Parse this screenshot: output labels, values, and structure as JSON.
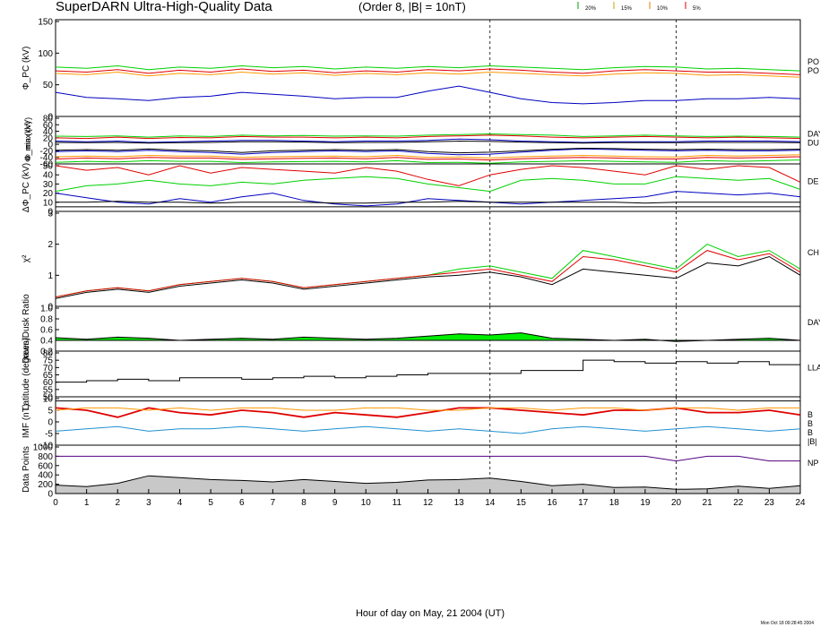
{
  "header": {
    "title": "SuperDARN Ultra-High-Quality Data",
    "subtitle": "(Order 8, |B| = 10nT)",
    "legend": [
      {
        "label": "20%",
        "color": "#00a000"
      },
      {
        "label": "15%",
        "color": "#d0a000"
      },
      {
        "label": "10%",
        "color": "#e08000"
      },
      {
        "label": "5%",
        "color": "#e00000"
      }
    ]
  },
  "footer": {
    "xlabel": "Hour of day on May, 21 2004 (UT)",
    "timestamp": "Mon Oct 18 09:28:45 2004"
  },
  "colors": {
    "red": "#e00000",
    "green": "#00d000",
    "orange": "#ff9900",
    "blue": "#0000c0",
    "black": "#000000",
    "purple": "#500080",
    "fill_green": "#00ee00",
    "fill_gray": "#c8c8c8",
    "imf_cyan": "#2090d0"
  },
  "chart_data": [
    {
      "type": "line",
      "id": "phi-pc",
      "ylabel": "Φ_PC (kV)",
      "ylim": [
        0,
        150
      ],
      "yticks": [
        "0",
        "50",
        "100",
        "150"
      ],
      "right_labels": [
        "PO",
        "PO"
      ],
      "xlim": [
        0,
        24
      ],
      "x_ticks": [
        "0",
        "1",
        "2",
        "3",
        "4",
        "5",
        "6",
        "7",
        "8",
        "9",
        "10",
        "11",
        "12",
        "13",
        "14",
        "15",
        "16",
        "17",
        "18",
        "19",
        "20",
        "21",
        "22",
        "23",
        "24"
      ],
      "vlines": [
        14,
        20
      ],
      "series": [
        {
          "color": "green",
          "values": [
            78,
            76,
            80,
            74,
            78,
            76,
            80,
            77,
            79,
            75,
            78,
            76,
            79,
            77,
            80,
            78,
            76,
            74,
            77,
            79,
            78,
            75,
            76,
            74,
            72
          ]
        },
        {
          "color": "orange",
          "values": [
            68,
            66,
            70,
            64,
            68,
            66,
            70,
            67,
            69,
            65,
            68,
            66,
            69,
            67,
            70,
            68,
            66,
            64,
            67,
            69,
            68,
            65,
            66,
            64,
            62
          ]
        },
        {
          "color": "red",
          "values": [
            72,
            70,
            74,
            68,
            73,
            70,
            75,
            71,
            73,
            69,
            72,
            70,
            74,
            72,
            75,
            73,
            70,
            68,
            72,
            74,
            72,
            70,
            70,
            68,
            66
          ]
        },
        {
          "color": "blue",
          "values": [
            38,
            30,
            28,
            25,
            30,
            32,
            38,
            35,
            32,
            28,
            30,
            30,
            40,
            48,
            38,
            28,
            22,
            20,
            22,
            25,
            25,
            28,
            28,
            30,
            28
          ]
        }
      ]
    },
    {
      "type": "line",
      "id": "phi-max-min",
      "ylabel_top": "Φ_max (kV)",
      "ylabel_bottom": "Φ_min (kV)",
      "ylim": [
        -60,
        80
      ],
      "yticks": [
        "-60",
        "-40",
        "-20",
        "0",
        "20",
        "40",
        "60",
        "80"
      ],
      "right_labels": [
        "DAY",
        "DU"
      ],
      "series": [
        {
          "color": "green",
          "values": [
            25,
            24,
            26,
            22,
            26,
            24,
            28,
            26,
            27,
            25,
            26,
            25,
            28,
            30,
            32,
            30,
            28,
            24,
            26,
            28,
            26,
            24,
            25,
            24,
            22
          ]
        },
        {
          "color": "red",
          "values": [
            20,
            18,
            22,
            18,
            21,
            20,
            24,
            22,
            22,
            20,
            22,
            20,
            24,
            26,
            28,
            26,
            22,
            20,
            22,
            24,
            22,
            20,
            22,
            20,
            18
          ]
        },
        {
          "color": "blue",
          "values": [
            10,
            8,
            10,
            6,
            8,
            10,
            12,
            12,
            10,
            8,
            10,
            10,
            12,
            16,
            14,
            10,
            8,
            6,
            8,
            8,
            8,
            10,
            10,
            10,
            8
          ]
        },
        {
          "color": "black",
          "values": [
            6,
            5,
            6,
            4,
            5,
            6,
            8,
            8,
            7,
            5,
            6,
            6,
            8,
            10,
            9,
            7,
            5,
            4,
            5,
            5,
            5,
            6,
            6,
            6,
            5
          ]
        },
        {
          "color": "green",
          "values": [
            -55,
            -52,
            -54,
            -50,
            -52,
            -52,
            -56,
            -54,
            -53,
            -52,
            -54,
            -50,
            -56,
            -55,
            -58,
            -54,
            -52,
            -50,
            -52,
            -54,
            -55,
            -50,
            -52,
            -50,
            -48
          ]
        },
        {
          "color": "red",
          "values": [
            -45,
            -42,
            -44,
            -40,
            -42,
            -42,
            -46,
            -44,
            -43,
            -42,
            -44,
            -40,
            -46,
            -45,
            -48,
            -44,
            -42,
            -40,
            -42,
            -44,
            -45,
            -40,
            -42,
            -40,
            -38
          ]
        },
        {
          "color": "orange",
          "values": [
            -38,
            -36,
            -38,
            -34,
            -36,
            -36,
            -40,
            -38,
            -37,
            -36,
            -38,
            -34,
            -40,
            -39,
            -42,
            -38,
            -36,
            -34,
            -36,
            -38,
            -39,
            -34,
            -36,
            -34,
            -32
          ]
        },
        {
          "color": "blue",
          "values": [
            -22,
            -20,
            -22,
            -18,
            -22,
            -25,
            -30,
            -25,
            -22,
            -20,
            -22,
            -20,
            -28,
            -32,
            -30,
            -24,
            -18,
            -14,
            -16,
            -18,
            -20,
            -18,
            -20,
            -20,
            -18
          ]
        },
        {
          "color": "black",
          "values": [
            -18,
            -16,
            -18,
            -14,
            -18,
            -20,
            -25,
            -20,
            -18,
            -16,
            -18,
            -16,
            -22,
            -26,
            -24,
            -20,
            -15,
            -12,
            -13,
            -15,
            -16,
            -15,
            -16,
            -16,
            -15
          ]
        }
      ]
    },
    {
      "type": "line",
      "id": "delta-phi-pc",
      "ylabel": "ΔΦ_PC (kV)",
      "ylim": [
        0,
        50
      ],
      "yticks": [
        "0",
        "10",
        "20",
        "30",
        "40",
        "50"
      ],
      "right_labels": [
        "DE"
      ],
      "series": [
        {
          "color": "red",
          "values": [
            50,
            45,
            48,
            40,
            50,
            42,
            48,
            46,
            44,
            42,
            48,
            44,
            35,
            28,
            40,
            46,
            50,
            48,
            44,
            40,
            50,
            46,
            50,
            48,
            32
          ]
        },
        {
          "color": "green",
          "values": [
            22,
            28,
            30,
            34,
            30,
            28,
            32,
            30,
            34,
            36,
            38,
            36,
            30,
            26,
            22,
            34,
            36,
            34,
            30,
            30,
            38,
            36,
            34,
            36,
            24
          ]
        },
        {
          "color": "blue",
          "values": [
            20,
            15,
            10,
            8,
            14,
            10,
            16,
            20,
            12,
            8,
            6,
            8,
            14,
            12,
            10,
            8,
            10,
            12,
            14,
            16,
            22,
            20,
            18,
            20,
            16
          ]
        },
        {
          "color": "black",
          "values": [
            10,
            10,
            11,
            10,
            10,
            9,
            10,
            10,
            10,
            9,
            9,
            10,
            10,
            11,
            10,
            10,
            10,
            10,
            10,
            9,
            10,
            10,
            10,
            10,
            10
          ]
        },
        {
          "color": "black",
          "values": [
            5,
            5,
            5,
            5,
            5,
            5,
            5,
            5,
            5,
            5,
            5,
            5,
            5,
            5,
            5,
            5,
            5,
            5,
            5,
            5,
            5,
            5,
            5,
            5,
            5
          ]
        }
      ]
    },
    {
      "type": "line",
      "id": "chi-squared",
      "ylabel": "χ²",
      "ylim": [
        0,
        3
      ],
      "yticks": [
        "0",
        "1",
        "2",
        "3"
      ],
      "right_labels": [
        "CH"
      ],
      "series": [
        {
          "color": "green",
          "values": [
            0.3,
            0.5,
            0.6,
            0.5,
            0.7,
            0.8,
            0.9,
            0.8,
            0.6,
            0.7,
            0.8,
            0.9,
            1.0,
            1.2,
            1.3,
            1.1,
            0.9,
            1.8,
            1.6,
            1.4,
            1.2,
            2.0,
            1.6,
            1.8,
            1.2
          ]
        },
        {
          "color": "red",
          "values": [
            0.3,
            0.5,
            0.6,
            0.5,
            0.7,
            0.8,
            0.9,
            0.8,
            0.6,
            0.7,
            0.8,
            0.9,
            1.0,
            1.1,
            1.2,
            1.0,
            0.8,
            1.6,
            1.5,
            1.3,
            1.1,
            1.8,
            1.5,
            1.7,
            1.1
          ]
        },
        {
          "color": "black",
          "values": [
            0.25,
            0.45,
            0.55,
            0.45,
            0.65,
            0.75,
            0.85,
            0.75,
            0.55,
            0.65,
            0.75,
            0.85,
            0.95,
            1.0,
            1.1,
            0.95,
            0.7,
            1.2,
            1.1,
            1.0,
            0.9,
            1.4,
            1.3,
            1.6,
            1.0
          ]
        }
      ]
    },
    {
      "type": "area",
      "id": "dawn-dusk-ratio",
      "ylabel": "Dawn/Dusk Ratio",
      "ylim": [
        0.2,
        1.0
      ],
      "yticks": [
        "0.2",
        "0.4",
        "0.6",
        "0.8",
        "1.0"
      ],
      "right_labels": [
        "DAY"
      ],
      "series": [
        {
          "color": "fill_green",
          "values": [
            0.45,
            0.42,
            0.46,
            0.44,
            0.4,
            0.42,
            0.44,
            0.42,
            0.46,
            0.44,
            0.42,
            0.44,
            0.48,
            0.52,
            0.5,
            0.54,
            0.44,
            0.42,
            0.4,
            0.42,
            0.38,
            0.4,
            0.42,
            0.44,
            0.4
          ]
        }
      ]
    },
    {
      "type": "step",
      "id": "latitude",
      "ylabel": "Latitude (degrees)",
      "ylim": [
        50,
        80
      ],
      "yticks": [
        "50",
        "55",
        "60",
        "65",
        "70",
        "75",
        "80"
      ],
      "right_labels": [
        "LLA"
      ],
      "series": [
        {
          "color": "black",
          "values": [
            60,
            61,
            62,
            61,
            63,
            63,
            62,
            63,
            64,
            63,
            64,
            65,
            66,
            66,
            66,
            68,
            68,
            75,
            74,
            73,
            74,
            73,
            74,
            72,
            70
          ]
        }
      ]
    },
    {
      "type": "line",
      "id": "imf",
      "ylabel": "IMF (nT)",
      "ylim": [
        -10,
        10
      ],
      "yticks": [
        "-10",
        "-5",
        "0",
        "5",
        "10"
      ],
      "right_labels": [
        "B",
        "B",
        "B",
        "|B|"
      ],
      "series": [
        {
          "color": "black",
          "values": [
            9,
            9,
            9,
            9,
            9,
            9,
            9,
            9,
            9,
            9,
            9,
            9,
            9,
            9,
            9,
            9,
            9,
            9,
            9,
            9,
            9,
            9,
            9,
            9,
            9
          ]
        },
        {
          "color": "red",
          "values": [
            6,
            5,
            2,
            6,
            4,
            3,
            5,
            4,
            2,
            4,
            3,
            2,
            4,
            6,
            6,
            5,
            4,
            3,
            5,
            5,
            6,
            4,
            4,
            5,
            3
          ]
        },
        {
          "color": "orange",
          "values": [
            5,
            6,
            6,
            5,
            6,
            5,
            6,
            6,
            5,
            5,
            6,
            6,
            5,
            5,
            6,
            6,
            5,
            6,
            6,
            5,
            6,
            6,
            5,
            6,
            6
          ]
        },
        {
          "color": "imf_cyan",
          "values": [
            -4,
            -3,
            -2,
            -4,
            -3,
            -3,
            -2,
            -3,
            -4,
            -3,
            -2,
            -3,
            -4,
            -3,
            -4,
            -5,
            -3,
            -2,
            -3,
            -4,
            -3,
            -2,
            -3,
            -4,
            -3
          ]
        }
      ]
    },
    {
      "type": "area",
      "id": "data-points",
      "ylabel": "Data Points",
      "ylim": [
        0,
        1000
      ],
      "yticks": [
        "0",
        "200",
        "400",
        "600",
        "800",
        "1000"
      ],
      "right_labels": [
        "NP"
      ],
      "series": [
        {
          "color": "purple",
          "values": [
            800,
            800,
            800,
            800,
            800,
            800,
            800,
            800,
            800,
            800,
            800,
            800,
            800,
            800,
            800,
            800,
            800,
            800,
            800,
            800,
            700,
            800,
            800,
            700,
            700
          ]
        },
        {
          "color": "fill_gray",
          "values": [
            180,
            150,
            220,
            380,
            340,
            300,
            280,
            250,
            300,
            260,
            220,
            240,
            290,
            300,
            330,
            260,
            170,
            200,
            130,
            140,
            90,
            100,
            160,
            110,
            170
          ]
        }
      ]
    }
  ]
}
